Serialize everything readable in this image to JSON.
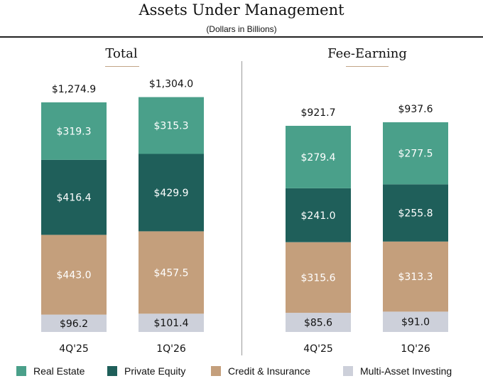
{
  "header": {
    "title": "Assets Under Management",
    "subtitle": "(Dollars in Billions)"
  },
  "colors": {
    "real_estate": "#4aa08a",
    "private_equity": "#1f5f5a",
    "credit_insurance": "#c49f7c",
    "multi_asset": "#cdd0da",
    "divider": "#9a9a9a",
    "title_underline": "#c2a487"
  },
  "legend": [
    {
      "label": "Real Estate",
      "color": "#4aa08a"
    },
    {
      "label": "Private Equity",
      "color": "#1f5f5a"
    },
    {
      "label": "Credit & Insurance",
      "color": "#c49f7c"
    },
    {
      "label": "Multi-Asset Investing",
      "color": "#cdd0da"
    }
  ],
  "chart_data": [
    {
      "type": "bar",
      "stacked": true,
      "title": "Total",
      "categories": [
        "4Q'25",
        "1Q'26"
      ],
      "totals": [
        1274.9,
        1304.0
      ],
      "total_labels": [
        "$1,274.9",
        "$1,304.0"
      ],
      "series": [
        {
          "name": "Multi-Asset Investing",
          "values": [
            96.2,
            101.4
          ],
          "labels": [
            "$96.2",
            "$101.4"
          ]
        },
        {
          "name": "Credit & Insurance",
          "values": [
            443.0,
            457.5
          ],
          "labels": [
            "$443.0",
            "$457.5"
          ]
        },
        {
          "name": "Private Equity",
          "values": [
            416.4,
            429.9
          ],
          "labels": [
            "$416.4",
            "$429.9"
          ]
        },
        {
          "name": "Real Estate",
          "values": [
            319.3,
            315.3
          ],
          "labels": [
            "$319.3",
            "$315.3"
          ]
        }
      ]
    },
    {
      "type": "bar",
      "stacked": true,
      "title": "Fee-Earning",
      "categories": [
        "4Q'25",
        "1Q'26"
      ],
      "totals": [
        921.7,
        937.6
      ],
      "total_labels": [
        "$921.7",
        "$937.6"
      ],
      "series": [
        {
          "name": "Multi-Asset Investing",
          "values": [
            85.6,
            91.0
          ],
          "labels": [
            "$85.6",
            "$91.0"
          ]
        },
        {
          "name": "Credit & Insurance",
          "values": [
            315.6,
            313.3
          ],
          "labels": [
            "$315.6",
            "$313.3"
          ]
        },
        {
          "name": "Private Equity",
          "values": [
            241.0,
            255.8
          ],
          "labels": [
            "$241.0",
            "$255.8"
          ]
        },
        {
          "name": "Real Estate",
          "values": [
            279.4,
            277.5
          ],
          "labels": [
            "$279.4",
            "$277.5"
          ]
        }
      ]
    }
  ]
}
